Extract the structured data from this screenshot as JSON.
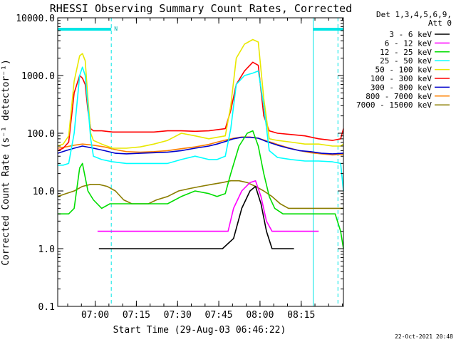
{
  "chart_data": {
    "type": "line",
    "title": "RHESSI Observing Summary Count Rates, Corrected",
    "xlabel": "Start Time (29-Aug-03 06:46:22)",
    "ylabel": "Corrected Count Rate (s⁻¹ detector⁻¹)",
    "yscale": "log",
    "ylim": [
      0.1,
      10000
    ],
    "xlim_minutes_after_0646": [
      0,
      104
    ],
    "x_tick_labels": [
      "07:00",
      "07:15",
      "07:30",
      "07:45",
      "08:00",
      "08:15"
    ],
    "y_tick_labels": [
      "0.1",
      "1.0",
      "10.0",
      "100.0",
      "1000.0",
      "10000.0"
    ],
    "legend_header": [
      "Det 1,3,4,5,6,9,",
      "Att 0"
    ],
    "legend_position": "right",
    "night_bars": [
      {
        "start_min": 0,
        "end_min": 19.5,
        "label": "N"
      },
      {
        "start_min": 93,
        "end_min": 104,
        "label": ""
      }
    ],
    "event_lines": [
      {
        "time_min": 0,
        "style": "dashed",
        "color": "#00e5e5"
      },
      {
        "time_min": 19.5,
        "style": "dashed",
        "color": "#00e5e5"
      },
      {
        "time_min": 93,
        "style": "solid",
        "color": "#00e5e5"
      },
      {
        "time_min": 102,
        "style": "dashed",
        "color": "#00e5e5"
      }
    ],
    "series": [
      {
        "name": "3 - 6 keV",
        "color": "#000000",
        "points": [
          [
            0,
            null
          ],
          [
            14.5,
            null
          ],
          [
            15,
            1.0
          ],
          [
            25,
            1.0
          ],
          [
            35,
            1.0
          ],
          [
            45,
            1.0
          ],
          [
            53,
            1.0
          ],
          [
            58,
            1.0
          ],
          [
            60,
            1.0
          ],
          [
            64,
            1.5
          ],
          [
            67,
            5
          ],
          [
            70,
            10
          ],
          [
            72,
            12
          ],
          [
            74,
            6
          ],
          [
            76,
            2
          ],
          [
            78,
            1.0
          ],
          [
            82,
            1.0
          ],
          [
            86,
            1.0
          ],
          [
            88,
            null
          ]
        ]
      },
      {
        "name": "6 - 12 keV",
        "color": "#ff00ff",
        "points": [
          [
            0,
            null
          ],
          [
            14,
            null
          ],
          [
            14.5,
            2.0
          ],
          [
            20,
            2.0
          ],
          [
            30,
            2.0
          ],
          [
            40,
            2.0
          ],
          [
            50,
            2.0
          ],
          [
            58,
            2.0
          ],
          [
            62,
            2.0
          ],
          [
            64,
            5
          ],
          [
            67,
            10
          ],
          [
            70,
            14
          ],
          [
            72,
            15
          ],
          [
            74,
            8
          ],
          [
            76,
            3
          ],
          [
            78,
            2.0
          ],
          [
            85,
            2.0
          ],
          [
            90,
            2.0
          ],
          [
            95,
            2.0
          ],
          [
            96,
            null
          ]
        ]
      },
      {
        "name": "12 - 25 keV",
        "color": "#00dd00",
        "points": [
          [
            0,
            4
          ],
          [
            2,
            4
          ],
          [
            4,
            4
          ],
          [
            6,
            5
          ],
          [
            8,
            25
          ],
          [
            9,
            30
          ],
          [
            11,
            10
          ],
          [
            13,
            7
          ],
          [
            16,
            5
          ],
          [
            19,
            6
          ],
          [
            22,
            6
          ],
          [
            26,
            6
          ],
          [
            30,
            6
          ],
          [
            35,
            6
          ],
          [
            40,
            6
          ],
          [
            45,
            8
          ],
          [
            50,
            10
          ],
          [
            55,
            9
          ],
          [
            58,
            8
          ],
          [
            61,
            9
          ],
          [
            63,
            20
          ],
          [
            66,
            60
          ],
          [
            69,
            100
          ],
          [
            71,
            110
          ],
          [
            73,
            60
          ],
          [
            75,
            20
          ],
          [
            77,
            8
          ],
          [
            79,
            5
          ],
          [
            82,
            4
          ],
          [
            86,
            4
          ],
          [
            90,
            4
          ],
          [
            94,
            4
          ],
          [
            98,
            4
          ],
          [
            101,
            4
          ],
          [
            103,
            2
          ],
          [
            104,
            1
          ]
        ]
      },
      {
        "name": "25 - 50 keV",
        "color": "#00ffff",
        "points": [
          [
            0,
            28
          ],
          [
            2,
            28
          ],
          [
            4,
            30
          ],
          [
            6,
            100
          ],
          [
            8,
            1000
          ],
          [
            9,
            1400
          ],
          [
            10,
            1000
          ],
          [
            11,
            300
          ],
          [
            12,
            80
          ],
          [
            13,
            40
          ],
          [
            16,
            35
          ],
          [
            20,
            32
          ],
          [
            25,
            30
          ],
          [
            30,
            30
          ],
          [
            35,
            30
          ],
          [
            40,
            30
          ],
          [
            45,
            35
          ],
          [
            50,
            40
          ],
          [
            55,
            35
          ],
          [
            58,
            35
          ],
          [
            61,
            40
          ],
          [
            63,
            120
          ],
          [
            65,
            700
          ],
          [
            68,
            1000
          ],
          [
            71,
            1100
          ],
          [
            73,
            1200
          ],
          [
            75,
            300
          ],
          [
            77,
            50
          ],
          [
            80,
            38
          ],
          [
            85,
            35
          ],
          [
            90,
            33
          ],
          [
            95,
            33
          ],
          [
            100,
            32
          ],
          [
            103,
            30
          ],
          [
            104,
            10
          ]
        ]
      },
      {
        "name": "50 - 100 keV",
        "color": "#e8e800",
        "points": [
          [
            0,
            60
          ],
          [
            2,
            65
          ],
          [
            4,
            90
          ],
          [
            6,
            800
          ],
          [
            8,
            2200
          ],
          [
            9,
            2400
          ],
          [
            10,
            1800
          ],
          [
            11,
            400
          ],
          [
            12,
            100
          ],
          [
            13,
            75
          ],
          [
            16,
            65
          ],
          [
            20,
            55
          ],
          [
            25,
            55
          ],
          [
            30,
            58
          ],
          [
            35,
            65
          ],
          [
            40,
            75
          ],
          [
            45,
            100
          ],
          [
            50,
            90
          ],
          [
            55,
            80
          ],
          [
            58,
            85
          ],
          [
            61,
            90
          ],
          [
            63,
            300
          ],
          [
            65,
            2000
          ],
          [
            68,
            3500
          ],
          [
            71,
            4200
          ],
          [
            73,
            3800
          ],
          [
            75,
            400
          ],
          [
            77,
            80
          ],
          [
            80,
            75
          ],
          [
            85,
            70
          ],
          [
            90,
            65
          ],
          [
            95,
            65
          ],
          [
            100,
            60
          ],
          [
            103,
            60
          ],
          [
            104,
            65
          ]
        ]
      },
      {
        "name": "100 - 300 keV",
        "color": "#ff0000",
        "points": [
          [
            0,
            50
          ],
          [
            2,
            55
          ],
          [
            4,
            70
          ],
          [
            6,
            500
          ],
          [
            8,
            1000
          ],
          [
            9,
            900
          ],
          [
            10,
            700
          ],
          [
            11,
            250
          ],
          [
            12,
            120
          ],
          [
            13,
            110
          ],
          [
            16,
            110
          ],
          [
            20,
            105
          ],
          [
            25,
            105
          ],
          [
            30,
            105
          ],
          [
            35,
            105
          ],
          [
            40,
            110
          ],
          [
            45,
            110
          ],
          [
            50,
            108
          ],
          [
            55,
            110
          ],
          [
            58,
            115
          ],
          [
            61,
            120
          ],
          [
            63,
            250
          ],
          [
            65,
            700
          ],
          [
            68,
            1200
          ],
          [
            71,
            1700
          ],
          [
            73,
            1500
          ],
          [
            75,
            200
          ],
          [
            77,
            110
          ],
          [
            80,
            100
          ],
          [
            85,
            95
          ],
          [
            90,
            90
          ],
          [
            95,
            80
          ],
          [
            100,
            75
          ],
          [
            103,
            80
          ],
          [
            104,
            120
          ]
        ]
      },
      {
        "name": "300 - 800 keV",
        "color": "#0000cc",
        "points": [
          [
            0,
            45
          ],
          [
            3,
            50
          ],
          [
            6,
            55
          ],
          [
            9,
            60
          ],
          [
            13,
            55
          ],
          [
            17,
            50
          ],
          [
            21,
            45
          ],
          [
            25,
            44
          ],
          [
            30,
            45
          ],
          [
            35,
            46
          ],
          [
            40,
            47
          ],
          [
            45,
            50
          ],
          [
            50,
            55
          ],
          [
            55,
            60
          ],
          [
            58,
            65
          ],
          [
            61,
            72
          ],
          [
            64,
            80
          ],
          [
            67,
            85
          ],
          [
            70,
            85
          ],
          [
            73,
            82
          ],
          [
            76,
            72
          ],
          [
            80,
            62
          ],
          [
            84,
            55
          ],
          [
            88,
            50
          ],
          [
            92,
            48
          ],
          [
            96,
            45
          ],
          [
            100,
            44
          ],
          [
            104,
            45
          ]
        ]
      },
      {
        "name": "800 - 7000 keV",
        "color": "#ff8000",
        "points": [
          [
            0,
            55
          ],
          [
            3,
            58
          ],
          [
            6,
            62
          ],
          [
            9,
            65
          ],
          [
            13,
            62
          ],
          [
            17,
            58
          ],
          [
            21,
            52
          ],
          [
            25,
            48
          ],
          [
            30,
            47
          ],
          [
            35,
            48
          ],
          [
            40,
            50
          ],
          [
            45,
            54
          ],
          [
            50,
            58
          ],
          [
            55,
            64
          ],
          [
            58,
            70
          ],
          [
            61,
            76
          ],
          [
            64,
            82
          ],
          [
            67,
            86
          ],
          [
            70,
            86
          ],
          [
            73,
            82
          ],
          [
            76,
            74
          ],
          [
            80,
            64
          ],
          [
            84,
            56
          ],
          [
            88,
            50
          ],
          [
            92,
            46
          ],
          [
            96,
            44
          ],
          [
            100,
            42
          ],
          [
            104,
            43
          ]
        ]
      },
      {
        "name": "7000 - 15000 keV",
        "color": "#8b7d00",
        "points": [
          [
            0,
            8
          ],
          [
            3,
            9
          ],
          [
            6,
            10
          ],
          [
            9,
            12
          ],
          [
            12,
            13
          ],
          [
            15,
            13
          ],
          [
            18,
            12
          ],
          [
            21,
            10
          ],
          [
            24,
            7
          ],
          [
            27,
            6
          ],
          [
            30,
            6
          ],
          [
            33,
            6
          ],
          [
            36,
            7
          ],
          [
            40,
            8
          ],
          [
            44,
            10
          ],
          [
            48,
            11
          ],
          [
            52,
            12
          ],
          [
            56,
            13
          ],
          [
            60,
            14
          ],
          [
            63,
            15
          ],
          [
            66,
            15
          ],
          [
            69,
            14
          ],
          [
            72,
            12
          ],
          [
            75,
            10
          ],
          [
            78,
            8
          ],
          [
            81,
            6
          ],
          [
            84,
            5
          ],
          [
            88,
            5
          ],
          [
            92,
            5
          ],
          [
            96,
            5
          ],
          [
            100,
            5
          ],
          [
            104,
            5
          ]
        ]
      }
    ]
  },
  "footer": {
    "date_stamp": "22-Oct-2021 20:48"
  }
}
